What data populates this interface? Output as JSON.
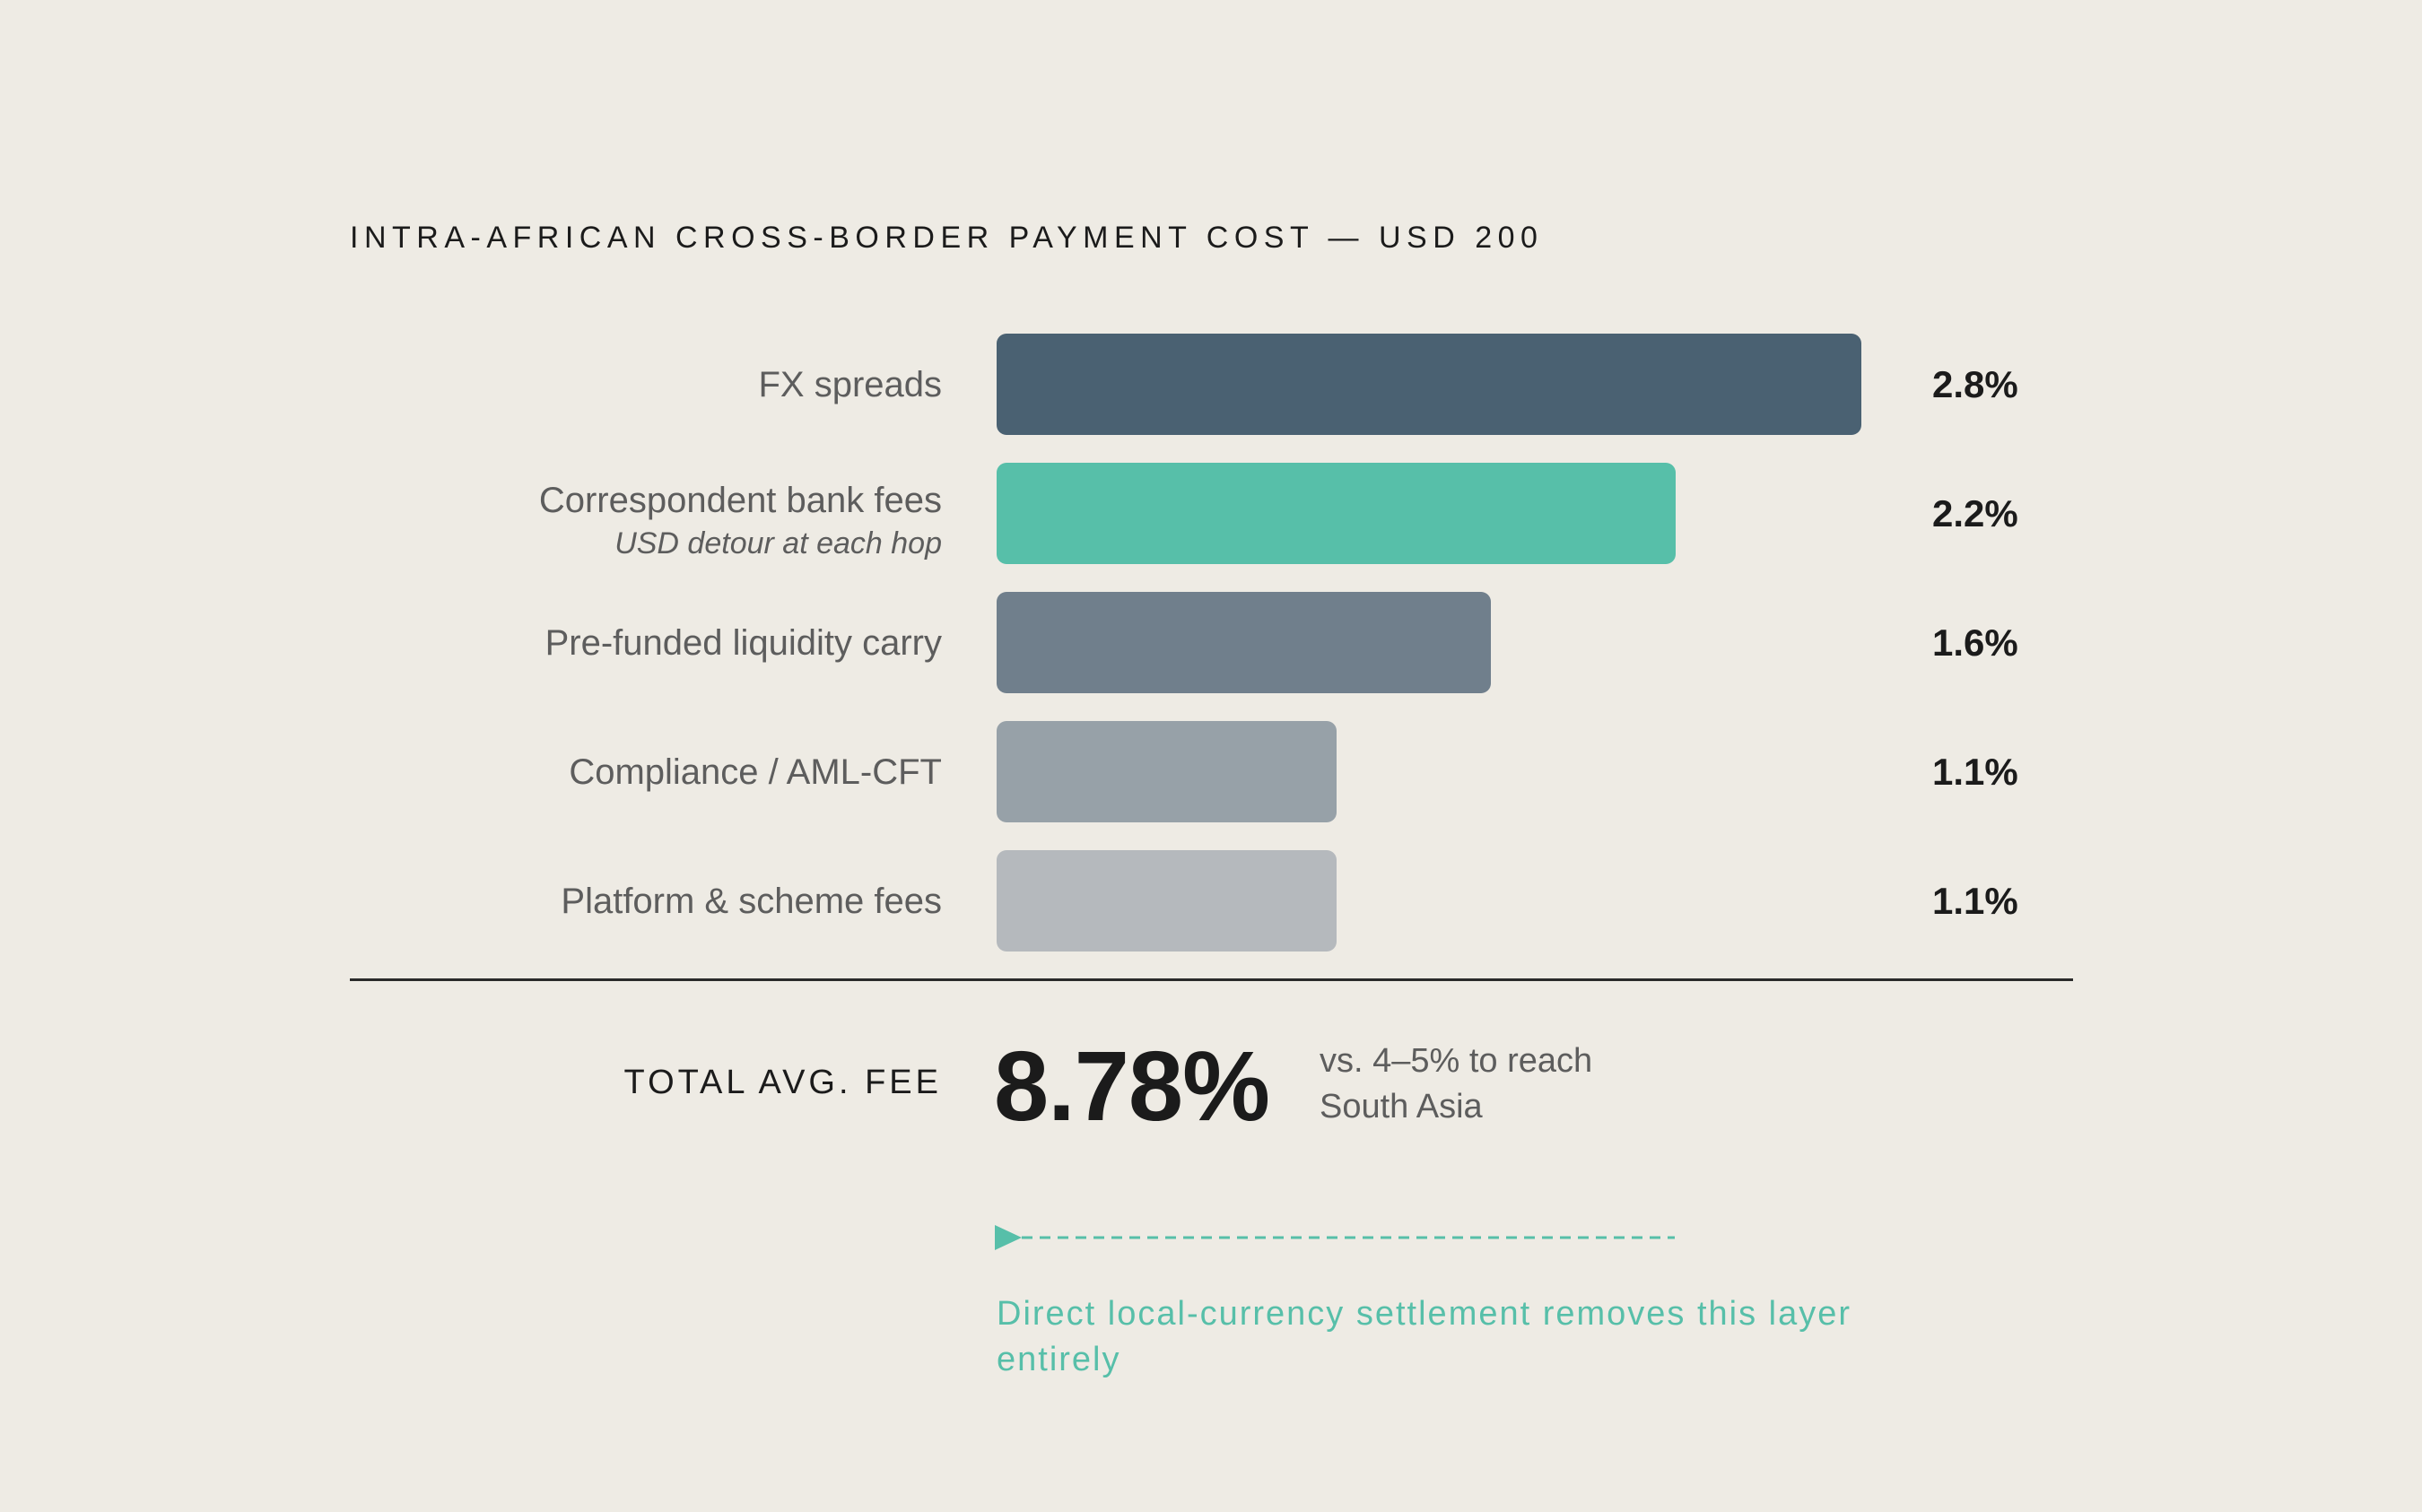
{
  "chart_data": {
    "type": "bar",
    "orientation": "horizontal",
    "title": "INTRA-AFRICAN CROSS-BORDER PAYMENT COST — USD 200",
    "categories": [
      "FX spreads",
      "Correspondent bank fees",
      "Pre-funded liquidity carry",
      "Compliance / AML-CFT",
      "Platform & scheme fees"
    ],
    "category_notes": [
      "",
      "USD detour at each hop",
      "",
      "",
      ""
    ],
    "values": [
      2.8,
      2.2,
      1.6,
      1.1,
      1.1
    ],
    "value_labels": [
      "2.8%",
      "2.2%",
      "1.6%",
      "1.1%",
      "1.1%"
    ],
    "colors": [
      "#4a6172",
      "#57bfa9",
      "#707f8c",
      "#97a1a8",
      "#b5b9bd"
    ],
    "xlim": [
      0,
      2.8
    ],
    "grid": false,
    "legend": "none"
  },
  "summary": {
    "total_label": "TOTAL AVG. FEE",
    "total_value": "8.78%",
    "comparison": "vs. 4–5% to reach South Asia"
  },
  "annotation": {
    "note": "Direct local-currency settlement removes this layer entirely",
    "accent_color": "#57bfa9",
    "icon": "arrow-right-icon"
  }
}
